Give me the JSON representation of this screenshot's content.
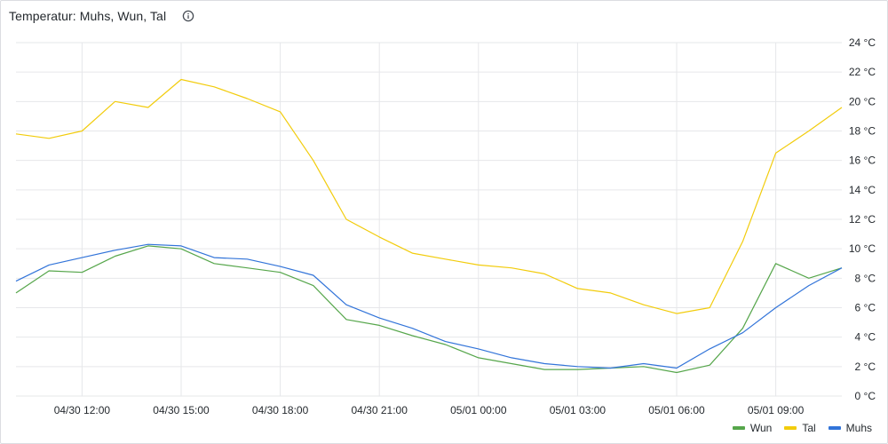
{
  "panel": {
    "title": "Temperatur: Muhs, Wun, Tal",
    "info_icon": "info-circle-icon"
  },
  "chart_data": {
    "type": "line",
    "title": "Temperatur: Muhs, Wun, Tal",
    "xlabel": "",
    "ylabel": "",
    "ylim": [
      0,
      24
    ],
    "yticks": [
      0,
      2,
      4,
      6,
      8,
      10,
      12,
      14,
      16,
      18,
      20,
      22,
      24
    ],
    "ytick_labels": [
      "0 °C",
      "2 °C",
      "4 °C",
      "6 °C",
      "8 °C",
      "10 °C",
      "12 °C",
      "14 °C",
      "16 °C",
      "18 °C",
      "20 °C",
      "22 °C",
      "24 °C"
    ],
    "xlim": [
      "04/30 10:00",
      "05/01 11:00"
    ],
    "xtick_labels": [
      "04/30 12:00",
      "04/30 15:00",
      "04/30 18:00",
      "04/30 21:00",
      "05/01 00:00",
      "05/01 03:00",
      "05/01 06:00",
      "05/01 09:00"
    ],
    "grid": true,
    "legend_position": "bottom-right",
    "x": [
      "04/30 10:00",
      "04/30 11:00",
      "04/30 12:00",
      "04/30 13:00",
      "04/30 14:00",
      "04/30 15:00",
      "04/30 16:00",
      "04/30 17:00",
      "04/30 18:00",
      "04/30 19:00",
      "04/30 20:00",
      "04/30 21:00",
      "04/30 22:00",
      "04/30 23:00",
      "05/01 00:00",
      "05/01 01:00",
      "05/01 02:00",
      "05/01 03:00",
      "05/01 04:00",
      "05/01 05:00",
      "05/01 06:00",
      "05/01 07:00",
      "05/01 08:00",
      "05/01 09:00",
      "05/01 10:00",
      "05/01 11:00"
    ],
    "series": [
      {
        "name": "Wun",
        "color": "#56a64b",
        "values": [
          7.0,
          8.5,
          8.4,
          9.5,
          10.2,
          10.0,
          9.0,
          8.7,
          8.4,
          7.5,
          5.2,
          4.8,
          4.1,
          3.5,
          2.6,
          2.2,
          1.8,
          1.8,
          1.9,
          2.0,
          1.6,
          2.1,
          4.6,
          9.0,
          8.0,
          8.7
        ]
      },
      {
        "name": "Tal",
        "color": "#f2cc0c",
        "values": [
          17.8,
          17.5,
          18.0,
          20.0,
          19.6,
          21.5,
          21.0,
          20.2,
          19.3,
          16.0,
          12.0,
          10.8,
          9.7,
          9.3,
          8.9,
          8.7,
          8.3,
          7.3,
          7.0,
          6.2,
          5.6,
          6.0,
          10.5,
          16.5,
          18.0,
          19.6
        ]
      },
      {
        "name": "Muhs",
        "color": "#3274d9",
        "values": [
          7.8,
          8.9,
          9.4,
          9.9,
          10.3,
          10.2,
          9.4,
          9.3,
          8.8,
          8.2,
          6.2,
          5.3,
          4.6,
          3.7,
          3.2,
          2.6,
          2.2,
          2.0,
          1.9,
          2.2,
          1.9,
          3.2,
          4.3,
          6.0,
          7.5,
          8.7
        ]
      }
    ]
  }
}
